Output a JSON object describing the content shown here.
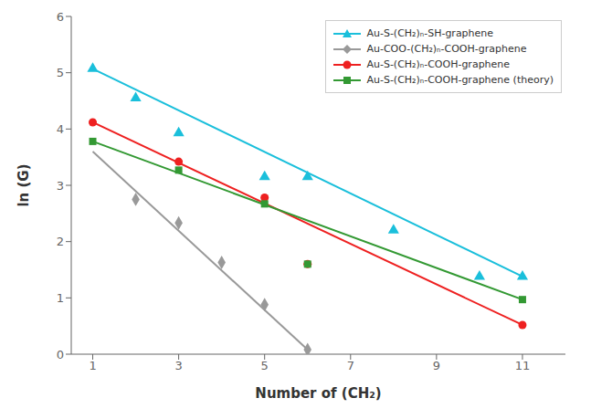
{
  "chart_data": {
    "type": "line",
    "xlabel": "Number of (CH₂)",
    "ylabel": "ln (G)",
    "xlim": [
      0.5,
      12
    ],
    "ylim": [
      0,
      6
    ],
    "xticks": [
      1,
      3,
      5,
      7,
      9,
      11
    ],
    "yticks": [
      0,
      1,
      2,
      3,
      4,
      5,
      6
    ],
    "grid": false,
    "legend": "upper right",
    "series": [
      {
        "name": "Au-S-(CH₂)ₙ-SH-graphene",
        "color": "#1ABFDB",
        "marker": "triangle",
        "line_style": "solid",
        "x": [
          1,
          2,
          3,
          5,
          6,
          8,
          10,
          11
        ],
        "values": [
          5.07,
          4.55,
          3.93,
          3.15,
          3.15,
          2.2,
          1.38,
          1.38
        ],
        "fit_x": [
          1,
          11
        ],
        "fit_values": [
          5.07,
          1.38
        ]
      },
      {
        "name": "Au-COO-(CH₂)ₙ-COOH-graphene",
        "color": "#999999",
        "marker": "diamond",
        "line_style": "solid",
        "x": [
          2,
          3,
          4,
          5,
          6
        ],
        "values": [
          2.75,
          2.33,
          1.63,
          0.88,
          0.08
        ],
        "fit_x": [
          1,
          6
        ],
        "fit_values": [
          3.6,
          0.08
        ]
      },
      {
        "name": "Au-S-(CH₂)ₙ-COOH-graphene",
        "color": "#EE2020",
        "marker": "circle",
        "line_style": "solid",
        "x": [
          1,
          3,
          5,
          6,
          11
        ],
        "values": [
          4.12,
          3.42,
          2.78,
          1.6,
          0.52
        ],
        "fit_x": [
          1,
          11
        ],
        "fit_values": [
          4.12,
          0.52
        ]
      },
      {
        "name": "Au-S-(CH₂)ₙ-COOH-graphene (theory)",
        "color": "#339933",
        "marker": "square",
        "line_style": "solid",
        "x": [
          1,
          3,
          5,
          6,
          11
        ],
        "values": [
          3.78,
          3.27,
          2.67,
          1.6,
          0.97
        ],
        "fit_x": [
          1,
          11
        ],
        "fit_values": [
          3.78,
          0.97
        ]
      }
    ]
  }
}
